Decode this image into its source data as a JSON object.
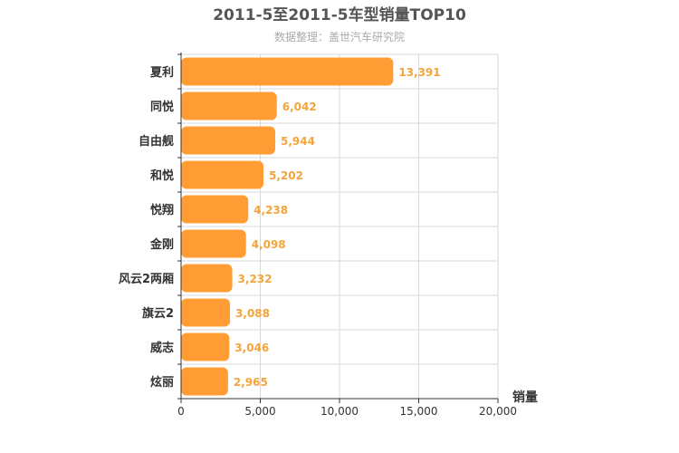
{
  "chart_data": {
    "type": "bar",
    "orientation": "horizontal",
    "title": "2011-5至2011-5车型销量TOP10",
    "subtitle": "数据整理：盖世汽车研究院",
    "xlabel": "销量",
    "ylabel": "",
    "categories": [
      "夏利",
      "同悦",
      "自由舰",
      "和悦",
      "悦翔",
      "金刚",
      "风云2两厢",
      "旗云2",
      "威志",
      "炫丽"
    ],
    "values": [
      13391,
      6042,
      5944,
      5202,
      4238,
      4098,
      3232,
      3088,
      3046,
      2965
    ],
    "value_labels": [
      "13,391",
      "6,042",
      "5,944",
      "5,202",
      "4,238",
      "4,098",
      "3,232",
      "3,088",
      "3,046",
      "2,965"
    ],
    "xlim": [
      0,
      20000
    ],
    "ticks": [
      "0",
      "5,000",
      "10,000",
      "15,000",
      "20,000"
    ],
    "grid": true,
    "colors": {
      "bar": "#ff9c34",
      "value_label": "#f3a43b",
      "grid": "#d8d8d8",
      "axis": "#333333"
    }
  }
}
